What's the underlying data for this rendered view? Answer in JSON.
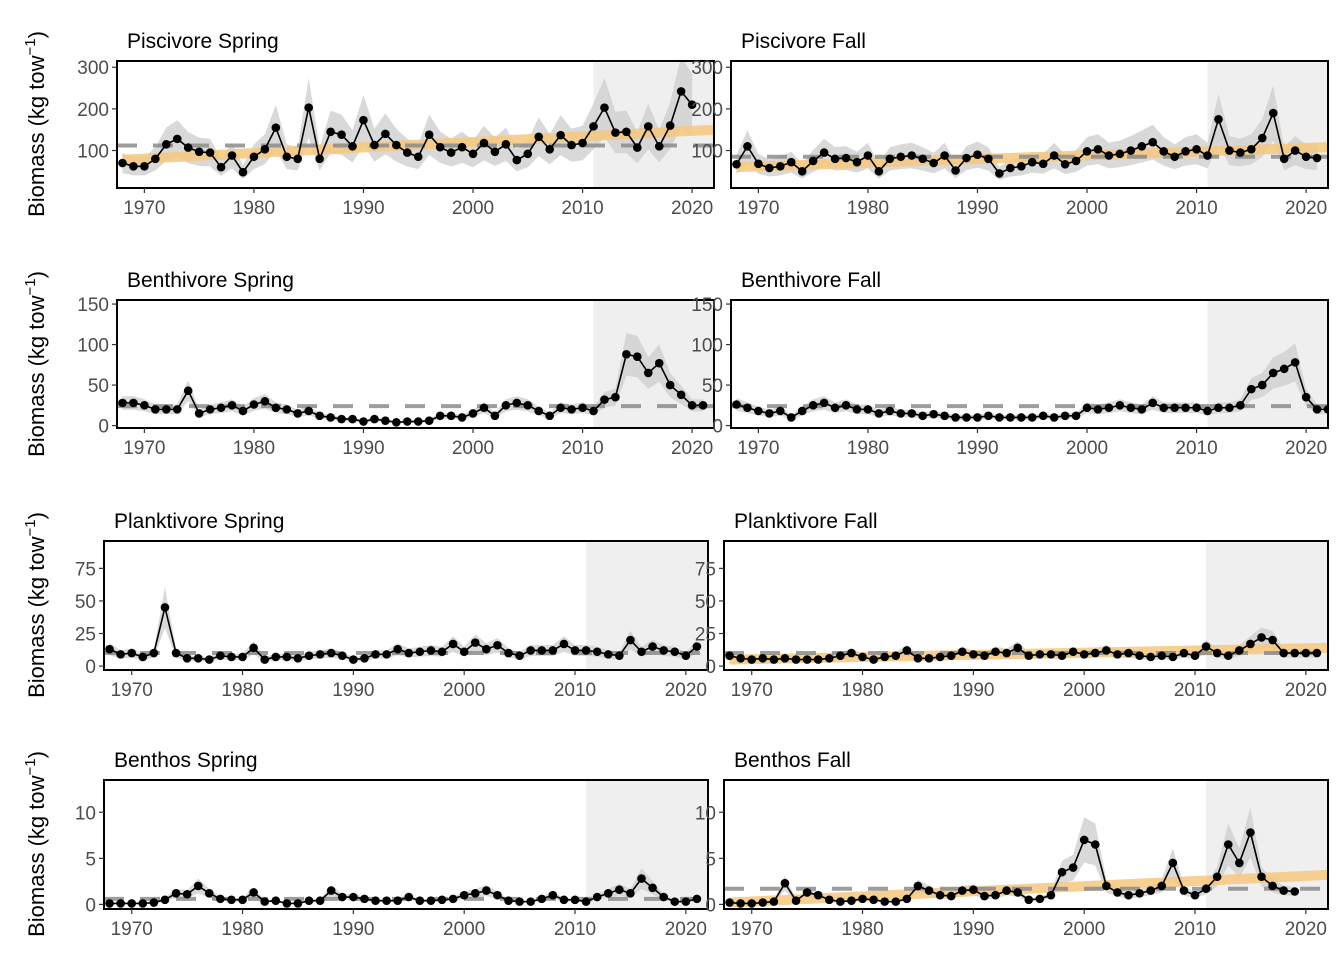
{
  "figure": {
    "ylabel": "Biomass (kg tow",
    "ylabel_sup": "−1",
    "ylabel_close": ")"
  },
  "style": {
    "trend_color": "#f5c77e",
    "ribbon_color": "#cfcfcf",
    "shade_color": "#efefef",
    "mean_line_color": "#8c8c8c",
    "point_color": "#000000"
  },
  "chart_data": [
    {
      "type": "line",
      "title": "Piscivore Spring",
      "xlim": [
        1967.5,
        2022
      ],
      "ylim": [
        10,
        315
      ],
      "yticks": [
        100,
        200,
        300
      ],
      "xticks": [
        1970,
        1980,
        1990,
        2000,
        2010,
        2020
      ],
      "shade_from": 2011,
      "mean": 112,
      "trend": [
        1968,
        78,
        2022,
        150
      ],
      "ribbon_frac": 0.35,
      "series": [
        {
          "x_start": 1968,
          "values": [
            70,
            62,
            62,
            80,
            115,
            128,
            107,
            97,
            95,
            60,
            88,
            48,
            85,
            103,
            155,
            85,
            80,
            203,
            80,
            145,
            138,
            110,
            173,
            113,
            140,
            113,
            95,
            85,
            138,
            108,
            95,
            108,
            92,
            118,
            97,
            115,
            77,
            92,
            133,
            103,
            137,
            113,
            118,
            158,
            203,
            143,
            145,
            107,
            158,
            110,
            160,
            242,
            210
          ]
        }
      ]
    },
    {
      "type": "line",
      "title": "Piscivore Fall",
      "xlim": [
        1967.5,
        2022
      ],
      "ylim": [
        10,
        315
      ],
      "yticks": [
        100,
        200,
        300
      ],
      "xticks": [
        1970,
        1980,
        1990,
        2000,
        2010,
        2020
      ],
      "shade_from": 2011,
      "mean": 85,
      "trend": [
        1968,
        60,
        2022,
        108
      ],
      "ribbon_frac": 0.35,
      "series": [
        {
          "x_start": 1968,
          "values": [
            67,
            110,
            68,
            58,
            62,
            72,
            50,
            75,
            95,
            80,
            82,
            72,
            88,
            50,
            80,
            85,
            88,
            80,
            70,
            88,
            52,
            82,
            90,
            80,
            45,
            58,
            62,
            72,
            68,
            88,
            67,
            75,
            98,
            103,
            88,
            92,
            100,
            110,
            120,
            98,
            85,
            98,
            103,
            88,
            175,
            100,
            95,
            103,
            130,
            190,
            80,
            100,
            85,
            82
          ]
        }
      ]
    },
    {
      "type": "line",
      "title": "Benthivore Spring",
      "xlim": [
        1967.5,
        2022
      ],
      "ylim": [
        -3,
        155
      ],
      "yticks": [
        0,
        50,
        100,
        150
      ],
      "xticks": [
        1970,
        1980,
        1990,
        2000,
        2010,
        2020
      ],
      "shade_from": 2011,
      "mean": 24,
      "trend": null,
      "ribbon_frac": 0.3,
      "series": [
        {
          "x_start": 1968,
          "values": [
            28,
            28,
            25,
            20,
            20,
            20,
            43,
            15,
            20,
            22,
            25,
            18,
            26,
            30,
            22,
            20,
            15,
            18,
            12,
            10,
            8,
            8,
            5,
            8,
            6,
            4,
            5,
            5,
            6,
            12,
            12,
            10,
            15,
            22,
            12,
            25,
            28,
            25,
            18,
            12,
            22,
            20,
            22,
            18,
            32,
            35,
            88,
            85,
            65,
            77,
            50,
            38,
            25,
            25
          ]
        }
      ]
    },
    {
      "type": "line",
      "title": "Benthivore Fall",
      "xlim": [
        1967.5,
        2022
      ],
      "ylim": [
        -3,
        155
      ],
      "yticks": [
        0,
        50,
        100,
        150
      ],
      "xticks": [
        1970,
        1980,
        1990,
        2000,
        2010,
        2020
      ],
      "shade_from": 2011,
      "mean": 24,
      "trend": null,
      "ribbon_frac": 0.3,
      "series": [
        {
          "x_start": 1968,
          "values": [
            26,
            22,
            18,
            15,
            18,
            10,
            18,
            25,
            28,
            22,
            25,
            20,
            20,
            15,
            18,
            15,
            15,
            12,
            14,
            12,
            10,
            10,
            10,
            12,
            10,
            10,
            10,
            10,
            12,
            10,
            12,
            12,
            22,
            20,
            22,
            25,
            22,
            20,
            28,
            22,
            22,
            22,
            22,
            18,
            22,
            22,
            25,
            45,
            50,
            65,
            70,
            78,
            35,
            20,
            20
          ]
        }
      ]
    },
    {
      "type": "line",
      "title": "Planktivore Spring",
      "xlim": [
        1967.5,
        2022
      ],
      "ylim": [
        -3,
        96
      ],
      "yticks": [
        0,
        25,
        50,
        75
      ],
      "xticks": [
        1970,
        1980,
        1990,
        2000,
        2010,
        2020
      ],
      "shade_from": 2011,
      "mean": 10,
      "trend": null,
      "ribbon_frac": 0.35,
      "series": [
        {
          "x_start": 1968,
          "values": [
            13,
            9,
            10,
            7,
            10,
            45,
            10,
            6,
            6,
            5,
            8,
            7,
            7,
            14,
            5,
            7,
            7,
            6,
            8,
            9,
            10,
            8,
            5,
            6,
            9,
            9,
            13,
            10,
            11,
            12,
            11,
            17,
            11,
            18,
            13,
            16,
            10,
            8,
            12,
            12,
            12,
            17,
            12,
            12,
            11,
            9,
            8,
            20,
            11,
            15,
            12,
            11,
            8,
            15
          ]
        }
      ]
    },
    {
      "type": "line",
      "title": "Planktivore Fall",
      "xlim": [
        1967.5,
        2022
      ],
      "ylim": [
        -3,
        96
      ],
      "yticks": [
        0,
        25,
        50,
        75
      ],
      "xticks": [
        1970,
        1980,
        1990,
        2000,
        2010,
        2020
      ],
      "shade_from": 2011,
      "mean": 10,
      "trend": [
        1968,
        5,
        2022,
        14
      ],
      "ribbon_frac": 0.35,
      "series": [
        {
          "x_start": 1968,
          "values": [
            8,
            6,
            5,
            6,
            5,
            6,
            5,
            5,
            5,
            6,
            8,
            10,
            7,
            5,
            7,
            8,
            12,
            6,
            6,
            7,
            8,
            11,
            9,
            8,
            11,
            10,
            14,
            8,
            9,
            9,
            8,
            11,
            9,
            10,
            12,
            9,
            10,
            8,
            7,
            8,
            7,
            10,
            8,
            15,
            10,
            8,
            12,
            17,
            22,
            20,
            10,
            10,
            10,
            10
          ]
        }
      ]
    },
    {
      "type": "line",
      "title": "Benthos Spring",
      "xlim": [
        1967.5,
        2022
      ],
      "ylim": [
        -0.5,
        13.5
      ],
      "yticks": [
        0,
        5,
        10
      ],
      "xticks": [
        1970,
        1980,
        1990,
        2000,
        2010,
        2020
      ],
      "shade_from": 2011,
      "mean": 0.6,
      "trend": null,
      "ribbon_frac": 0.4,
      "series": [
        {
          "x_start": 1968,
          "values": [
            0.1,
            0.1,
            0.1,
            0.1,
            0.2,
            0.5,
            1.2,
            1.1,
            2.0,
            1.2,
            0.6,
            0.5,
            0.5,
            1.3,
            0.3,
            0.4,
            0.1,
            0.1,
            0.4,
            0.4,
            1.5,
            0.8,
            0.8,
            0.6,
            0.4,
            0.4,
            0.4,
            0.8,
            0.4,
            0.4,
            0.5,
            0.6,
            1.0,
            1.2,
            1.5,
            1.0,
            0.4,
            0.3,
            0.3,
            0.6,
            1.0,
            0.5,
            0.5,
            0.3,
            0.8,
            1.2,
            1.6,
            1.2,
            2.8,
            1.8,
            0.8,
            0.3,
            0.3,
            0.6
          ]
        }
      ]
    },
    {
      "type": "line",
      "title": "Benthos Fall",
      "xlim": [
        1967.5,
        2022
      ],
      "ylim": [
        -0.5,
        13.5
      ],
      "yticks": [
        0,
        5,
        10
      ],
      "xticks": [
        1970,
        1980,
        1990,
        2000,
        2010,
        2020
      ],
      "shade_from": 2011,
      "mean": 1.7,
      "trend": [
        1968,
        0.2,
        2022,
        3.2
      ],
      "ribbon_frac": 0.35,
      "series": [
        {
          "x_start": 1968,
          "values": [
            0.2,
            0.1,
            0.1,
            0.2,
            0.3,
            2.3,
            0.4,
            1.3,
            1.0,
            0.5,
            0.3,
            0.4,
            0.6,
            0.5,
            0.3,
            0.3,
            0.6,
            2.0,
            1.5,
            1.0,
            0.9,
            1.5,
            1.6,
            0.9,
            1.0,
            1.5,
            1.3,
            0.5,
            0.6,
            1.0,
            3.5,
            4.0,
            7.0,
            6.5,
            2.0,
            1.3,
            1.0,
            1.2,
            1.5,
            2.0,
            4.5,
            1.5,
            1.0,
            1.7,
            3.0,
            6.5,
            4.5,
            7.8,
            3.0,
            2.0,
            1.5,
            1.4
          ]
        }
      ]
    }
  ]
}
